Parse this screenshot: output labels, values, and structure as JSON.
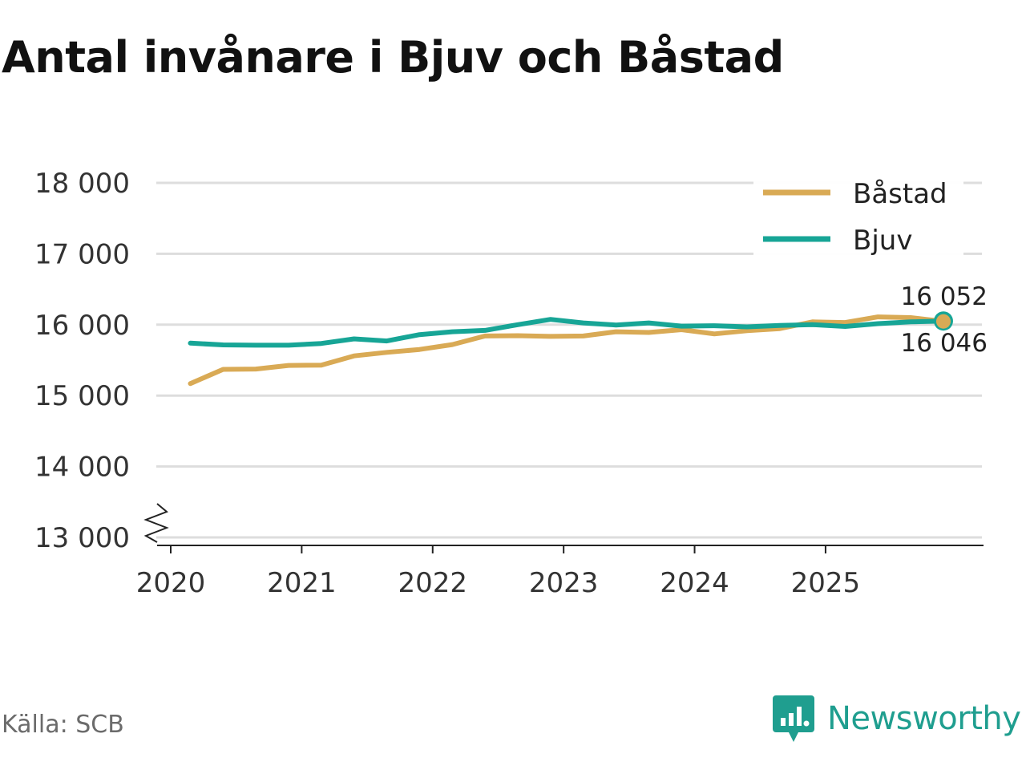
{
  "colors": {
    "bastad": "#d9aa55",
    "bjuv": "#17a596",
    "grid": "#dddddd",
    "brand": "#1f9e8f"
  },
  "chart_data": {
    "type": "line",
    "title": "Antal invånare i Bjuv och Båstad",
    "xlabel": "",
    "ylabel": "",
    "ylim": [
      13000,
      18000
    ],
    "y_ticks": [
      13000,
      14000,
      15000,
      16000,
      17000,
      18000
    ],
    "y_tick_labels": [
      "13 000",
      "14 000",
      "15 000",
      "16 000",
      "17 000",
      "18 000"
    ],
    "x_range": [
      2020,
      2026.2
    ],
    "x_ticks": [
      2020,
      2021,
      2022,
      2023,
      2024,
      2025
    ],
    "x_tick_labels": [
      "2020",
      "2021",
      "2022",
      "2023",
      "2024",
      "2025"
    ],
    "axis_break": true,
    "grid": true,
    "legend_position": "top-right",
    "legend": [
      "Båstad",
      "Bjuv"
    ],
    "x": [
      2020.15,
      2020.4,
      2020.65,
      2020.9,
      2021.15,
      2021.4,
      2021.65,
      2021.9,
      2022.15,
      2022.4,
      2022.65,
      2022.9,
      2023.15,
      2023.4,
      2023.65,
      2023.9,
      2024.15,
      2024.4,
      2024.65,
      2024.9,
      2025.15,
      2025.4,
      2025.65,
      2025.9
    ],
    "series": [
      {
        "name": "Båstad",
        "color": "#d9aa55",
        "values": [
          15170,
          15370,
          15375,
          15425,
          15430,
          15560,
          15610,
          15650,
          15720,
          15840,
          15845,
          15835,
          15840,
          15900,
          15890,
          15930,
          15870,
          15915,
          15945,
          16040,
          16030,
          16110,
          16100,
          16046
        ]
      },
      {
        "name": "Bjuv",
        "color": "#17a596",
        "values": [
          15740,
          15715,
          15710,
          15710,
          15735,
          15800,
          15770,
          15860,
          15900,
          15920,
          16000,
          16075,
          16025,
          15995,
          16025,
          15980,
          15985,
          15970,
          15990,
          16000,
          15975,
          16015,
          16040,
          16052
        ]
      }
    ],
    "end_labels": {
      "bjuv": "16 052",
      "bastad": "16 046"
    }
  },
  "source": "Källa: SCB",
  "brand": {
    "name": "Newsworthy",
    "icon": "bar-chart-speech-bubble-icon"
  }
}
